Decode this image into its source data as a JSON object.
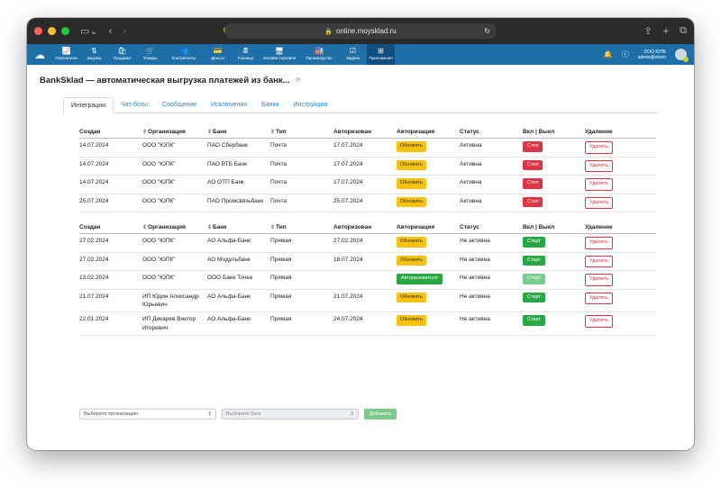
{
  "browser": {
    "url": "online.moysklad.ru"
  },
  "nav": {
    "items": [
      {
        "label": "Показатели",
        "icon": "chart-icon",
        "glyph": "📈"
      },
      {
        "label": "Закупки",
        "icon": "purchase-icon",
        "glyph": "⇅"
      },
      {
        "label": "Продажи",
        "icon": "bag-icon",
        "glyph": "🛍"
      },
      {
        "label": "Товары",
        "icon": "cart-icon",
        "glyph": "🛒"
      },
      {
        "label": "Контрагенты",
        "icon": "people-icon",
        "glyph": "👥"
      },
      {
        "label": "Деньги",
        "icon": "money-icon",
        "glyph": "💳"
      },
      {
        "label": "Розница",
        "icon": "register-icon",
        "glyph": "🖩"
      },
      {
        "label": "Онлайн-торговля",
        "icon": "store-icon",
        "glyph": "🖥"
      },
      {
        "label": "Производство",
        "icon": "factory-icon",
        "glyph": "🏭"
      },
      {
        "label": "Задачи",
        "icon": "tasks-icon",
        "glyph": "☑"
      },
      {
        "label": "Приложения",
        "icon": "apps-icon",
        "glyph": "⊞"
      }
    ],
    "user_org": "ООО ЮПК",
    "user_login": "admin@ebom"
  },
  "page": {
    "title": "BankSklad — автоматическая выгрузка платежей из банк..."
  },
  "tabs": [
    "Интеграции",
    "Чат-боты",
    "Сообщение",
    "Исключения",
    "Банки",
    "Инструкция"
  ],
  "table_headers": [
    "Создан",
    "Организация",
    "Банк",
    "Тип",
    "Авторизован",
    "Авторизация",
    "Статус",
    "Вкл | Выкл",
    "Удаление"
  ],
  "table1": [
    {
      "created": "14.07.2024",
      "org": "ООО \"ЮПК\"",
      "bank": "ПАО Сбербанк",
      "type": "Почта",
      "authorized": "17.07.2024",
      "auth_btn": "Обновить",
      "status": "Активна",
      "toggle": "Стоп",
      "delete": "Удалить"
    },
    {
      "created": "14.07.2024",
      "org": "ООО \"ЮПК\"",
      "bank": "ПАО ВТБ Банк",
      "type": "Почта",
      "authorized": "17.07.2024",
      "auth_btn": "Обновить",
      "status": "Активна",
      "toggle": "Стоп",
      "delete": "Удалить"
    },
    {
      "created": "14.07.2024",
      "org": "ООО \"ЮПК\"",
      "bank": "АО ОТП Банк",
      "type": "Почта",
      "authorized": "17.07.2024",
      "auth_btn": "Обновить",
      "status": "Активна",
      "toggle": "Стоп",
      "delete": "Удалить"
    },
    {
      "created": "25.07.2024",
      "org": "ООО \"ЮПК\"",
      "bank": "ПАО Промсвязьбанк",
      "type": "Почта",
      "authorized": "25.07.2024",
      "auth_btn": "Обновить",
      "status": "Активна",
      "toggle": "Стоп",
      "delete": "Удалить"
    }
  ],
  "table2": [
    {
      "created": "27.02.2024",
      "org": "ООО \"ЮПК\"",
      "bank": "АО Альфа-Банк",
      "type": "Прямая",
      "authorized": "27.02.2024",
      "auth_btn": "Обновить",
      "status": "Не активна",
      "toggle": "Старт",
      "delete": "Удалить"
    },
    {
      "created": "27.02.2024",
      "org": "ООО \"ЮПК\"",
      "bank": "АО Модульбанк",
      "type": "Прямая",
      "authorized": "18.07.2024",
      "auth_btn": "Обновить",
      "status": "Не активна",
      "toggle": "Старт",
      "delete": "Удалить"
    },
    {
      "created": "13.02.2024",
      "org": "ООО \"ЮПК\"",
      "bank": "ООО Банк Точка",
      "type": "Прямая",
      "authorized": "",
      "auth_btn": "Авторизоваться",
      "status": "Не активна",
      "toggle": "Старт",
      "delete": "Удалить"
    },
    {
      "created": "21.07.2024",
      "org": "ИП Юдин Александр Юрьевич",
      "bank": "АО Альфа-Банк",
      "type": "Прямая",
      "authorized": "21.07.2024",
      "auth_btn": "Обновить",
      "status": "Не активна",
      "toggle": "Старт",
      "delete": "Удалить"
    },
    {
      "created": "22.01.2024",
      "org": "ИП Дикарев Виктор Игоревич",
      "bank": "АО Альфа-Банк",
      "type": "Прямая",
      "authorized": "24.07.2024",
      "auth_btn": "Обновить",
      "status": "Не активна",
      "toggle": "Старт",
      "delete": "Удалить"
    }
  ],
  "controls": {
    "org_select": "Выберите организацию",
    "bank_select": "Выберите банк",
    "add_button": "Добавить"
  },
  "colors": {
    "nav_bg": "#1e6fa7",
    "update_btn": "#f5c211",
    "stop_btn": "#dc3545",
    "start_btn": "#28a745",
    "link": "#1e88e5"
  }
}
